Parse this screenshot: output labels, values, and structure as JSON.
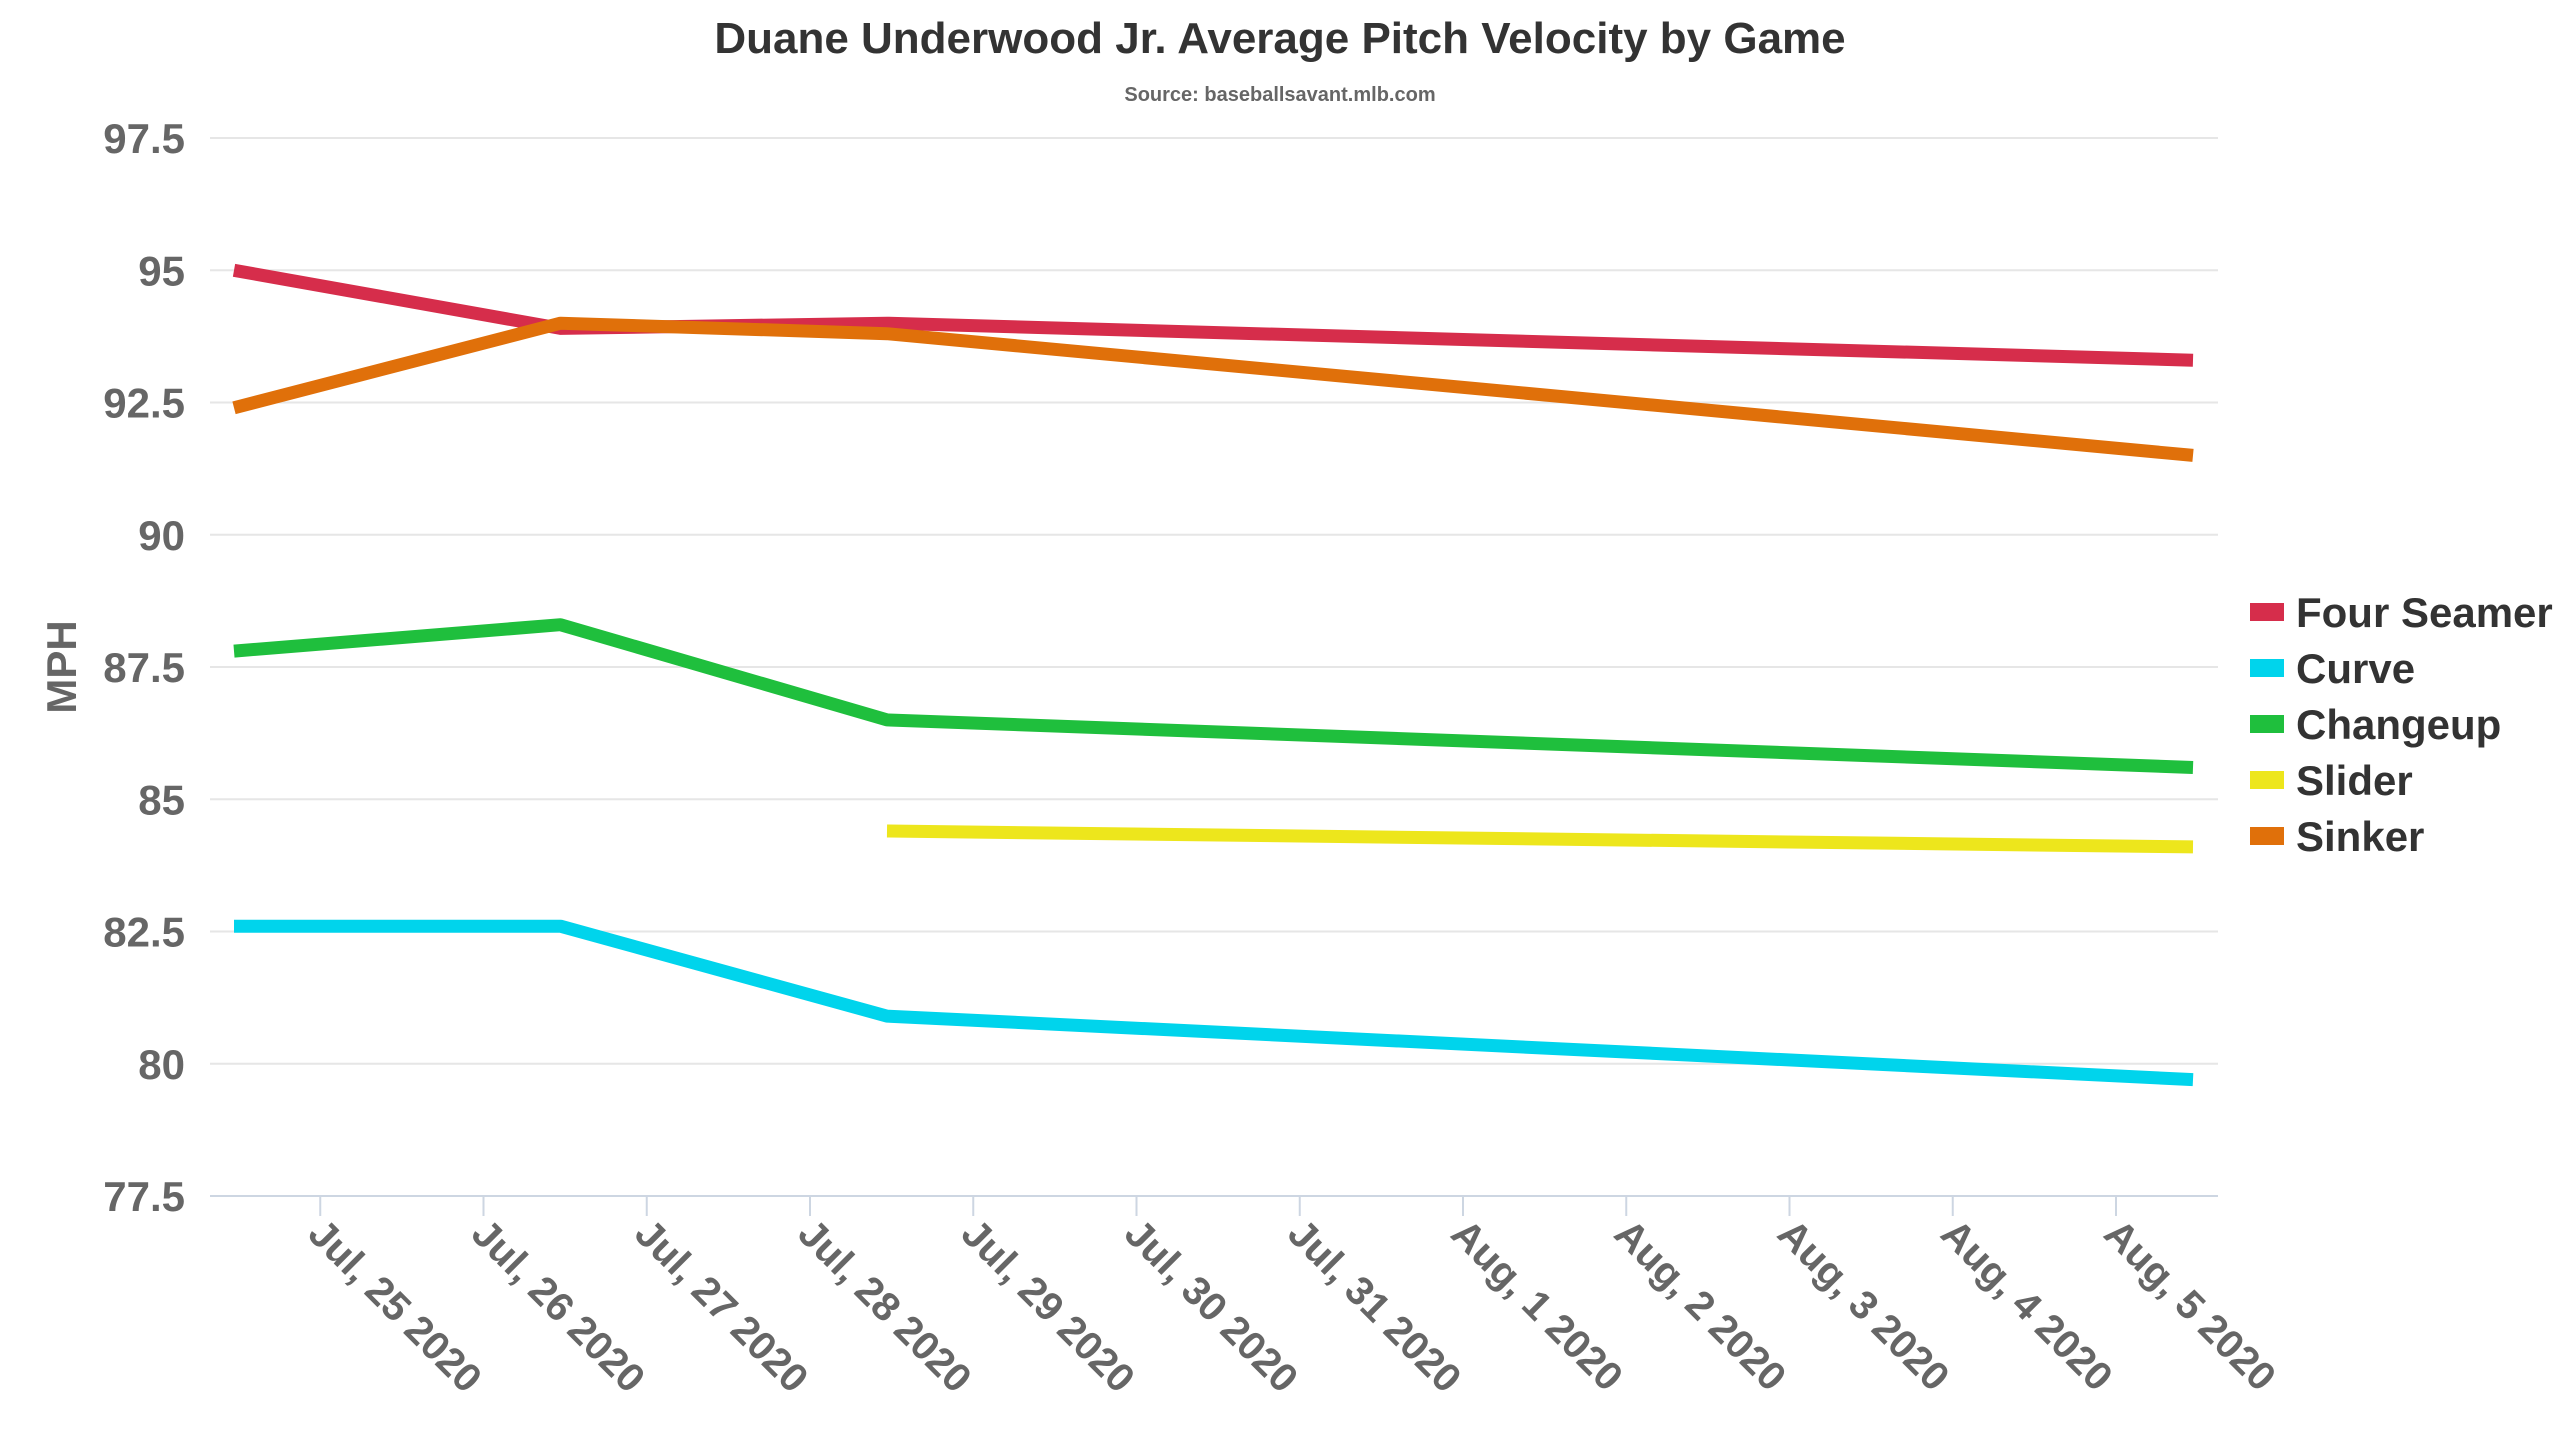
{
  "chart_data": {
    "type": "line",
    "title": "Duane Underwood Jr. Average Pitch Velocity by Game",
    "subtitle": "Source: baseballsavant.mlb.com",
    "xlabel": "",
    "ylabel": "MPH",
    "x_tick_labels": [
      "Jul, 25 2020",
      "Jul, 26 2020",
      "Jul, 27 2020",
      "Jul, 28 2020",
      "Jul, 29 2020",
      "Jul, 30 2020",
      "Jul, 31 2020",
      "Aug, 1 2020",
      "Aug, 2 2020",
      "Aug, 3 2020",
      "Aug, 4 2020",
      "Aug, 5 2020"
    ],
    "y_ticks": [
      77.5,
      80,
      82.5,
      85,
      87.5,
      90,
      92.5,
      95,
      97.5
    ],
    "y_tick_labels": [
      "77.5",
      "80",
      "82.5",
      "85",
      "87.5",
      "90",
      "92.5",
      "95",
      "97.5"
    ],
    "ylim": [
      77.5,
      97.5
    ],
    "xlim": [
      "2020-07-24",
      "2020-08-05"
    ],
    "grid": true,
    "legend_position": "right",
    "series": [
      {
        "name": "Four Seamer",
        "color": "#d62d4b",
        "x": [
          "2020-07-24",
          "2020-07-26",
          "2020-07-28",
          "2020-08-05"
        ],
        "y": [
          95.0,
          93.9,
          94.0,
          93.3
        ]
      },
      {
        "name": "Curve",
        "color": "#00d4ec",
        "x": [
          "2020-07-24",
          "2020-07-26",
          "2020-07-28",
          "2020-08-05"
        ],
        "y": [
          82.6,
          82.6,
          80.9,
          79.7
        ]
      },
      {
        "name": "Changeup",
        "color": "#1fbf3d",
        "x": [
          "2020-07-24",
          "2020-07-26",
          "2020-07-28",
          "2020-08-05"
        ],
        "y": [
          87.8,
          88.3,
          86.5,
          85.6
        ]
      },
      {
        "name": "Slider",
        "color": "#ede61c",
        "x": [
          "2020-07-28",
          "2020-08-05"
        ],
        "y": [
          84.4,
          84.1
        ]
      },
      {
        "name": "Sinker",
        "color": "#e0700a",
        "x": [
          "2020-07-24",
          "2020-07-26",
          "2020-07-28",
          "2020-08-05"
        ],
        "y": [
          92.4,
          94.0,
          93.8,
          91.5
        ]
      }
    ]
  }
}
